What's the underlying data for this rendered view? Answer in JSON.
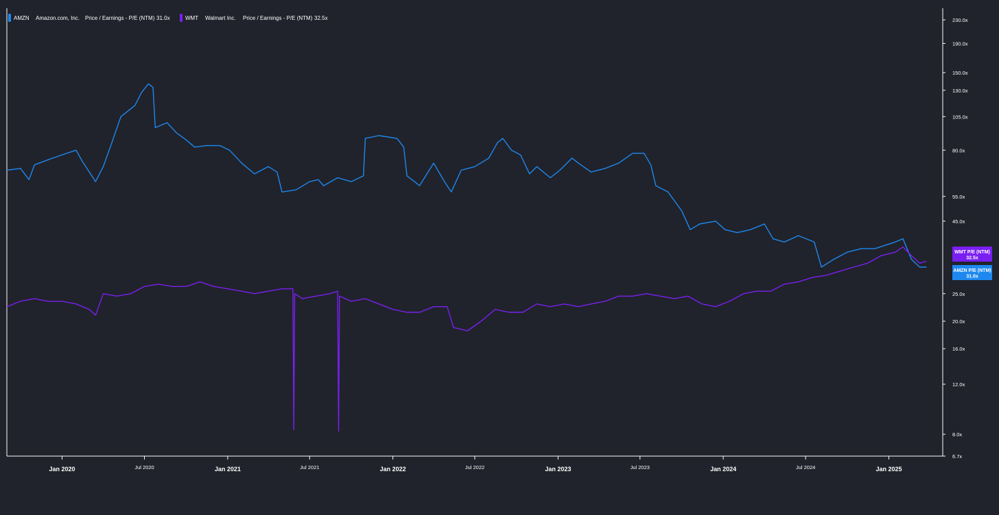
{
  "chart_data": {
    "type": "line",
    "scale": "log",
    "grid": false,
    "legend_position": "top-left",
    "y_ticks": [
      "230.0x",
      "190.0x",
      "150.0x",
      "130.0x",
      "105.0x",
      "80.0x",
      "55.0x",
      "45.0x",
      "25.0x",
      "20.0x",
      "16.0x",
      "12.0x",
      "8.0x",
      "6.7x"
    ],
    "x_ticks": [
      {
        "label": "Jan 2020",
        "date": "2020-01-01",
        "major": true
      },
      {
        "label": "Jul 2020",
        "date": "2020-07-01",
        "major": false
      },
      {
        "label": "Jan 2021",
        "date": "2021-01-01",
        "major": true
      },
      {
        "label": "Jul 2021",
        "date": "2021-07-01",
        "major": false
      },
      {
        "label": "Jan 2022",
        "date": "2022-01-01",
        "major": true
      },
      {
        "label": "Jul 2022",
        "date": "2022-07-01",
        "major": false
      },
      {
        "label": "Jan 2023",
        "date": "2023-01-01",
        "major": true
      },
      {
        "label": "Jul 2023",
        "date": "2023-07-01",
        "major": false
      },
      {
        "label": "Jan 2024",
        "date": "2024-01-01",
        "major": true
      },
      {
        "label": "Jul 2024",
        "date": "2024-07-01",
        "major": false
      },
      {
        "label": "Jan 2025",
        "date": "2025-01-01",
        "major": true
      }
    ],
    "ylim": [
      6.7,
      250
    ],
    "xlim": [
      "2019-09-01",
      "2025-04-30"
    ],
    "series": [
      {
        "name": "AMZN",
        "company": "Amazon.com, Inc.",
        "metric": "Price / Earnings - P/E (NTM)",
        "current": "31.0x",
        "badge": "AMZN P/E (NTM)",
        "color": "#1e88f0",
        "points": [
          [
            "2019-09-01",
            68
          ],
          [
            "2019-10-01",
            69
          ],
          [
            "2019-10-20",
            63
          ],
          [
            "2019-11-01",
            71
          ],
          [
            "2019-12-01",
            74
          ],
          [
            "2020-01-01",
            77
          ],
          [
            "2020-02-01",
            80
          ],
          [
            "2020-02-15",
            73
          ],
          [
            "2020-03-15",
            62
          ],
          [
            "2020-04-01",
            70
          ],
          [
            "2020-04-20",
            85
          ],
          [
            "2020-05-10",
            105
          ],
          [
            "2020-06-10",
            115
          ],
          [
            "2020-06-25",
            128
          ],
          [
            "2020-07-10",
            137
          ],
          [
            "2020-07-20",
            133
          ],
          [
            "2020-07-25",
            96
          ],
          [
            "2020-08-20",
            100
          ],
          [
            "2020-09-10",
            92
          ],
          [
            "2020-10-01",
            87
          ],
          [
            "2020-10-20",
            82
          ],
          [
            "2020-11-15",
            83
          ],
          [
            "2020-12-15",
            83
          ],
          [
            "2021-01-05",
            80
          ],
          [
            "2021-02-01",
            72
          ],
          [
            "2021-03-01",
            66
          ],
          [
            "2021-04-01",
            70
          ],
          [
            "2021-04-20",
            67
          ],
          [
            "2021-05-01",
            57
          ],
          [
            "2021-06-01",
            58
          ],
          [
            "2021-07-01",
            62
          ],
          [
            "2021-07-20",
            63
          ],
          [
            "2021-08-01",
            60
          ],
          [
            "2021-09-01",
            64
          ],
          [
            "2021-10-01",
            62
          ],
          [
            "2021-10-28",
            65
          ],
          [
            "2021-11-01",
            88
          ],
          [
            "2021-12-01",
            90
          ],
          [
            "2022-01-10",
            88
          ],
          [
            "2022-01-25",
            82
          ],
          [
            "2022-02-01",
            65
          ],
          [
            "2022-03-01",
            60
          ],
          [
            "2022-04-01",
            72
          ],
          [
            "2022-04-25",
            62
          ],
          [
            "2022-05-10",
            57
          ],
          [
            "2022-06-01",
            68
          ],
          [
            "2022-07-01",
            70
          ],
          [
            "2022-08-01",
            75
          ],
          [
            "2022-08-20",
            85
          ],
          [
            "2022-09-01",
            88
          ],
          [
            "2022-09-20",
            80
          ],
          [
            "2022-10-10",
            77
          ],
          [
            "2022-10-30",
            66
          ],
          [
            "2022-11-15",
            70
          ],
          [
            "2022-12-15",
            64
          ],
          [
            "2023-01-05",
            68
          ],
          [
            "2023-02-01",
            75
          ],
          [
            "2023-02-15",
            72
          ],
          [
            "2023-03-15",
            67
          ],
          [
            "2023-04-15",
            69
          ],
          [
            "2023-05-15",
            72
          ],
          [
            "2023-06-15",
            78
          ],
          [
            "2023-07-10",
            78
          ],
          [
            "2023-07-25",
            71
          ],
          [
            "2023-08-05",
            60
          ],
          [
            "2023-09-01",
            57
          ],
          [
            "2023-10-01",
            49
          ],
          [
            "2023-10-20",
            42
          ],
          [
            "2023-11-10",
            44
          ],
          [
            "2023-12-15",
            45
          ],
          [
            "2024-01-05",
            42
          ],
          [
            "2024-02-01",
            41
          ],
          [
            "2024-03-01",
            42
          ],
          [
            "2024-04-01",
            44
          ],
          [
            "2024-04-20",
            39
          ],
          [
            "2024-05-15",
            38
          ],
          [
            "2024-06-15",
            40
          ],
          [
            "2024-07-20",
            38
          ],
          [
            "2024-08-05",
            31
          ],
          [
            "2024-09-01",
            33
          ],
          [
            "2024-10-01",
            35
          ],
          [
            "2024-11-01",
            36
          ],
          [
            "2024-12-01",
            36
          ],
          [
            "2025-01-15",
            38
          ],
          [
            "2025-02-01",
            39
          ],
          [
            "2025-02-20",
            33
          ],
          [
            "2025-03-10",
            31
          ],
          [
            "2025-03-25",
            31.0
          ]
        ]
      },
      {
        "name": "WMT",
        "company": "Walmart Inc.",
        "metric": "Price / Earnings - P/E (NTM)",
        "current": "32.5x",
        "badge": "WMT P/E (NTM)",
        "color": "#7a1ff2",
        "points": [
          [
            "2019-09-01",
            22.5
          ],
          [
            "2019-10-01",
            23.5
          ],
          [
            "2019-11-01",
            24
          ],
          [
            "2019-12-01",
            23.5
          ],
          [
            "2020-01-01",
            23.5
          ],
          [
            "2020-02-01",
            23
          ],
          [
            "2020-03-01",
            22
          ],
          [
            "2020-03-15",
            21
          ],
          [
            "2020-04-01",
            25
          ],
          [
            "2020-05-01",
            24.5
          ],
          [
            "2020-06-01",
            25
          ],
          [
            "2020-07-01",
            26.5
          ],
          [
            "2020-08-01",
            27
          ],
          [
            "2020-09-01",
            26.5
          ],
          [
            "2020-10-01",
            26.5
          ],
          [
            "2020-11-01",
            27.5
          ],
          [
            "2020-12-01",
            26.5
          ],
          [
            "2021-01-01",
            26
          ],
          [
            "2021-02-01",
            25.5
          ],
          [
            "2021-03-01",
            25
          ],
          [
            "2021-04-01",
            25.5
          ],
          [
            "2021-05-01",
            26
          ],
          [
            "2021-05-25",
            26
          ],
          [
            "2021-05-27",
            8.3
          ],
          [
            "2021-05-29",
            25
          ],
          [
            "2021-06-15",
            24
          ],
          [
            "2021-07-15",
            24.5
          ],
          [
            "2021-08-15",
            25
          ],
          [
            "2021-09-01",
            25.5
          ],
          [
            "2021-09-03",
            8.2
          ],
          [
            "2021-09-05",
            24.5
          ],
          [
            "2021-10-01",
            23.5
          ],
          [
            "2021-11-01",
            24
          ],
          [
            "2021-12-01",
            23
          ],
          [
            "2022-01-01",
            22
          ],
          [
            "2022-02-01",
            21.5
          ],
          [
            "2022-03-01",
            21.5
          ],
          [
            "2022-04-01",
            22.5
          ],
          [
            "2022-05-01",
            22.5
          ],
          [
            "2022-05-15",
            19
          ],
          [
            "2022-06-15",
            18.5
          ],
          [
            "2022-07-15",
            20
          ],
          [
            "2022-08-15",
            22
          ],
          [
            "2022-09-15",
            21.5
          ],
          [
            "2022-10-15",
            21.5
          ],
          [
            "2022-11-15",
            23
          ],
          [
            "2022-12-15",
            22.5
          ],
          [
            "2023-01-15",
            23
          ],
          [
            "2023-02-15",
            22.5
          ],
          [
            "2023-03-15",
            23
          ],
          [
            "2023-04-15",
            23.5
          ],
          [
            "2023-05-15",
            24.5
          ],
          [
            "2023-06-15",
            24.5
          ],
          [
            "2023-07-15",
            25
          ],
          [
            "2023-08-15",
            24.5
          ],
          [
            "2023-09-15",
            24
          ],
          [
            "2023-10-15",
            24.5
          ],
          [
            "2023-11-15",
            23
          ],
          [
            "2023-12-15",
            22.5
          ],
          [
            "2024-01-15",
            23.5
          ],
          [
            "2024-02-15",
            25
          ],
          [
            "2024-03-15",
            25.5
          ],
          [
            "2024-04-15",
            25.5
          ],
          [
            "2024-05-15",
            27
          ],
          [
            "2024-06-15",
            27.5
          ],
          [
            "2024-07-15",
            28.5
          ],
          [
            "2024-08-15",
            29
          ],
          [
            "2024-09-15",
            30
          ],
          [
            "2024-10-15",
            31
          ],
          [
            "2024-11-15",
            32
          ],
          [
            "2024-12-15",
            34
          ],
          [
            "2025-01-15",
            35
          ],
          [
            "2025-02-01",
            36.5
          ],
          [
            "2025-02-20",
            34
          ],
          [
            "2025-03-10",
            32
          ],
          [
            "2025-03-25",
            32.5
          ]
        ]
      }
    ]
  }
}
